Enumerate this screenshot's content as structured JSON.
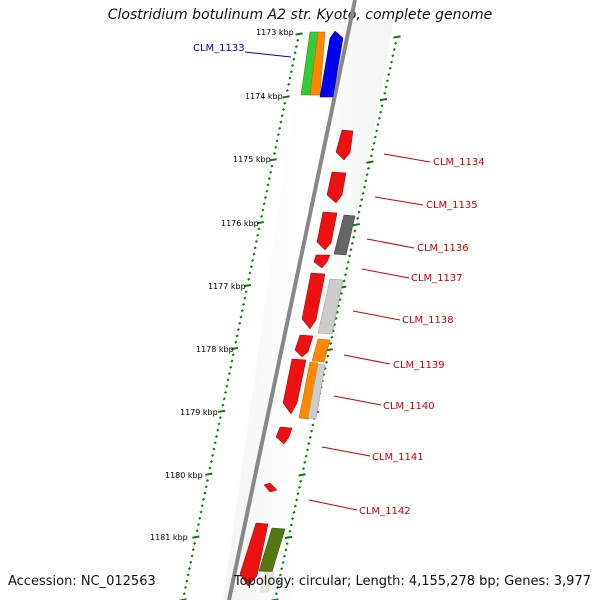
{
  "title": "Clostridium botulinum A2 str. Kyoto, complete genome",
  "footer": {
    "accession": "Accession: NC_012563",
    "topology": "Topology: circular; Length: 4,155,278 bp; Genes: 3,977"
  },
  "ticks": [
    "1173 kbp",
    "1174 kbp",
    "1175 kbp",
    "1176 kbp",
    "1177 kbp",
    "1178 kbp",
    "1179 kbp",
    "1180 kbp",
    "1181 kbp"
  ],
  "gene_labels": [
    {
      "text": "CLM_1133",
      "color": "#0000cc"
    },
    {
      "text": "CLM_1134",
      "color": "#cc0000"
    },
    {
      "text": "CLM_1135",
      "color": "#cc0000"
    },
    {
      "text": "CLM_1136",
      "color": "#cc0000"
    },
    {
      "text": "CLM_1137",
      "color": "#cc0000"
    },
    {
      "text": "CLM_1138",
      "color": "#cc0000"
    },
    {
      "text": "CLM_1139",
      "color": "#cc0000"
    },
    {
      "text": "CLM_1140",
      "color": "#cc0000"
    },
    {
      "text": "CLM_1141",
      "color": "#cc0000"
    },
    {
      "text": "CLM_1142",
      "color": "#cc0000"
    }
  ],
  "colors": {
    "cds": "#ee1111",
    "backbone": "#888888",
    "ticks": "#117711",
    "blue": "#0000ee",
    "green": "#33cc33",
    "orange": "#ff8800",
    "dark_gray": "#666666",
    "light_gray": "#cccccc",
    "olive": "#557711"
  }
}
